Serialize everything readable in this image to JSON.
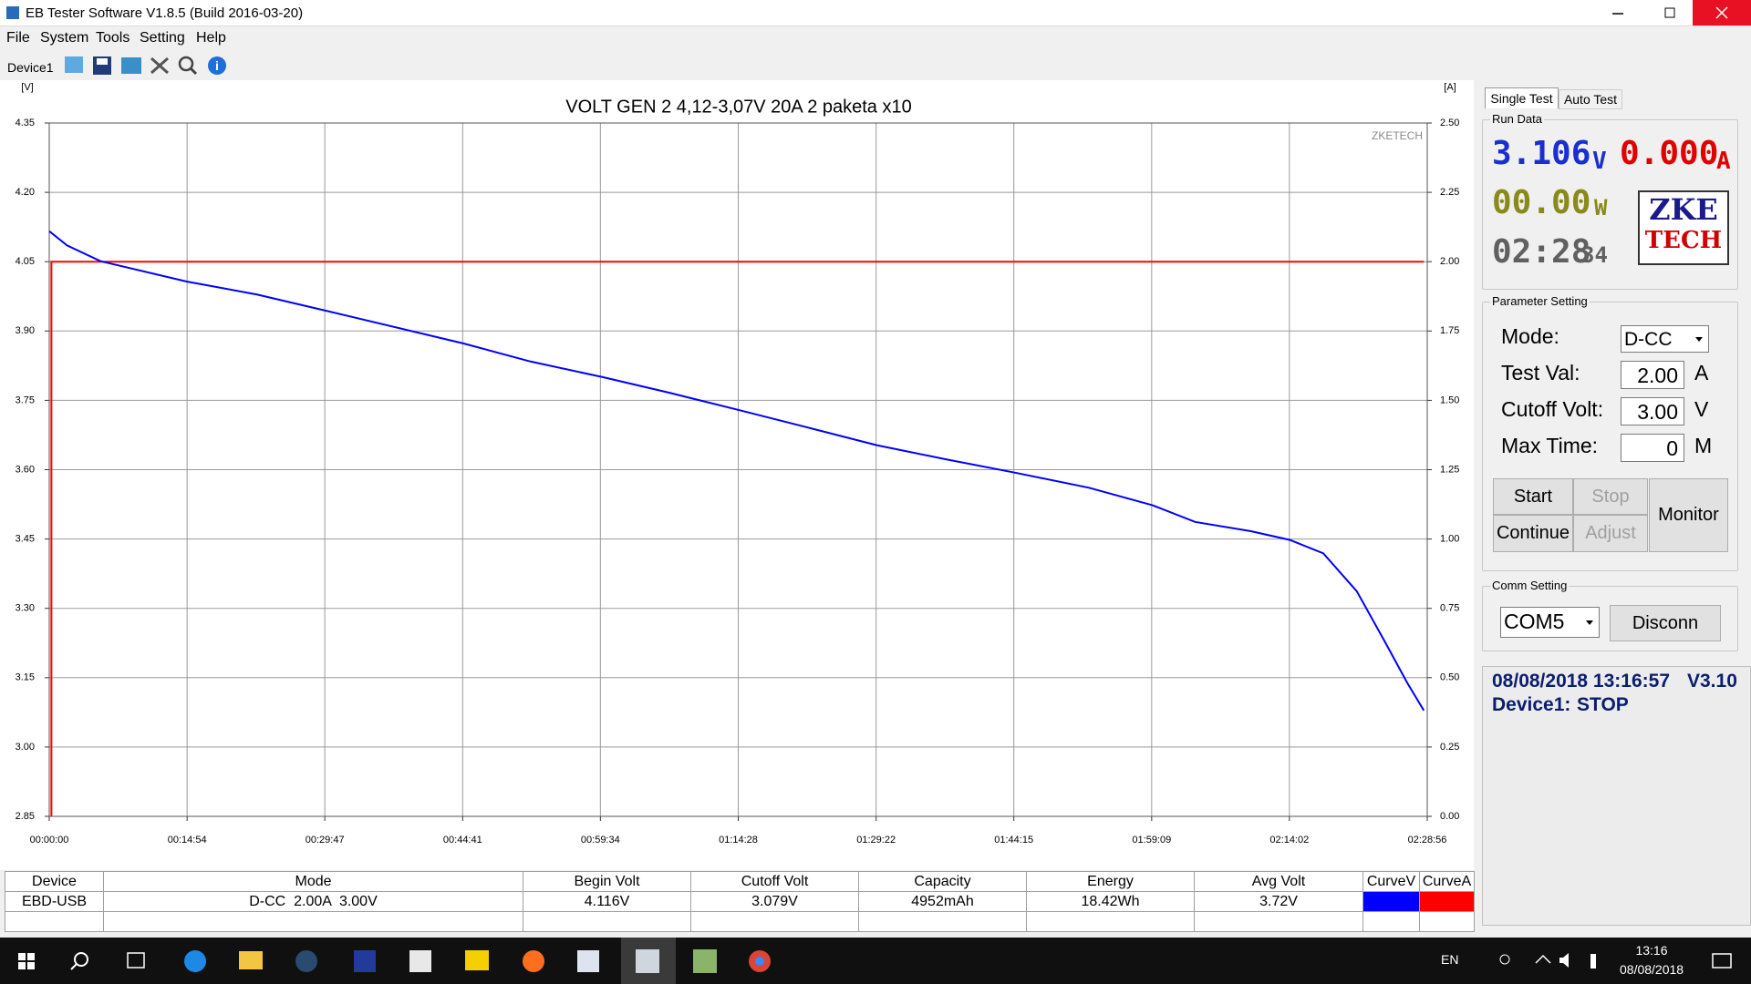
{
  "window": {
    "title": "EB Tester Software V1.8.5 (Build 2016-03-20)"
  },
  "menu": [
    "File",
    "System",
    "Tools",
    "Setting",
    "Help"
  ],
  "device_tab": "Device1",
  "chart_data": {
    "type": "line",
    "title": "VOLT GEN 2 4,12-3,07V 20A 2 paketa x10",
    "y_label": "[V]",
    "y2_label": "[A]",
    "watermark": "ZKETECH",
    "xlim": [
      0,
      8936
    ],
    "xticks": [
      {
        "value": 0,
        "label": "00:00:00"
      },
      {
        "value": 894,
        "label": "00:14:54"
      },
      {
        "value": 1787,
        "label": "00:29:47"
      },
      {
        "value": 2681,
        "label": "00:44:41"
      },
      {
        "value": 3574,
        "label": "00:59:34"
      },
      {
        "value": 4468,
        "label": "01:14:28"
      },
      {
        "value": 5362,
        "label": "01:29:22"
      },
      {
        "value": 6255,
        "label": "01:44:15"
      },
      {
        "value": 7149,
        "label": "01:59:09"
      },
      {
        "value": 8042,
        "label": "02:14:02"
      },
      {
        "value": 8936,
        "label": "02:28:56"
      }
    ],
    "ylim": [
      2.85,
      4.35
    ],
    "yticks": [
      2.85,
      {
        "value": 3,
        "label": "3.00"
      },
      3.15,
      {
        "value": 3.3,
        "label": "3.30"
      },
      3.45,
      {
        "value": 3.6,
        "label": "3.60"
      },
      3.75,
      {
        "value": 3.9,
        "label": "3.90"
      },
      4.05,
      {
        "value": 4.2,
        "label": "4.20"
      },
      4.35
    ],
    "y2lim": [
      0,
      2.5
    ],
    "y2ticks": [
      {
        "value": 0,
        "label": "0.00"
      },
      0.25,
      {
        "value": 0.5,
        "label": "0.50"
      },
      0.75,
      {
        "value": 1,
        "label": "1.00"
      },
      1.25,
      {
        "value": 1.5,
        "label": "1.50"
      },
      1.75,
      {
        "value": 2,
        "label": "2.00"
      },
      2.25,
      {
        "value": 2.5,
        "label": "2.50"
      }
    ],
    "grid": true,
    "series": [
      {
        "color": "#0000ff",
        "x": [
          0,
          116,
          333,
          891,
          1347,
          1781,
          2687,
          3121,
          3592,
          4026,
          4461,
          4910,
          5366,
          5822,
          6271,
          6742,
          7155,
          7430,
          7792,
          8045,
          8262,
          8479,
          8661,
          8806,
          8914
        ],
        "values": [
          4.116,
          4.085,
          4.051,
          4.007,
          3.979,
          3.945,
          3.873,
          3.834,
          3.8,
          3.766,
          3.73,
          3.692,
          3.653,
          3.622,
          3.593,
          3.561,
          3.523,
          3.487,
          3.467,
          3.448,
          3.419,
          3.337,
          3.228,
          3.139,
          3.079
        ]
      },
      {
        "color": "#ff0000",
        "axis": "y2",
        "x": [
          14,
          14,
          8914
        ],
        "values": [
          0,
          2,
          2
        ]
      }
    ]
  },
  "right_panel": {
    "tabs": [
      "Single Test",
      "Auto Test"
    ],
    "run_data": {
      "title": "Run Data",
      "voltage": "3.106",
      "voltage_unit": "V",
      "current": "0.000",
      "current_unit": "A",
      "power": "00.00",
      "power_unit": "W",
      "time": "02:28",
      "time_seconds": "34",
      "logo": [
        "ZKE",
        "TECH"
      ]
    },
    "parameter_setting": {
      "title": "Parameter Setting",
      "rows": [
        {
          "label": "Mode:",
          "value": "D-CC"
        },
        {
          "label": "Test Val:",
          "value": "2.00",
          "unit": "A"
        },
        {
          "label": "Cutoff Volt:",
          "value": "3.00",
          "unit": "V"
        },
        {
          "label": "Max Time:",
          "value": "0",
          "unit": "M"
        }
      ],
      "buttons": {
        "start": "Start",
        "stop": "Stop",
        "continue": "Continue",
        "adjust": "Adjust",
        "monitor": "Monitor"
      }
    },
    "comm_setting": {
      "title": "Comm Setting",
      "port": "COM5",
      "button": "Disconn"
    },
    "status": {
      "datetime": "08/08/2018 13:16:57",
      "version": "V3.10",
      "device": "Device1:",
      "state": "STOP"
    }
  },
  "table": {
    "headers": [
      "Device",
      "Mode",
      "Begin Volt",
      "Cutoff Volt",
      "Capacity",
      "Energy",
      "Avg Volt",
      "CurveV",
      "CurveA"
    ],
    "rows": [
      [
        "EBD-USB",
        "D-CC  2.00A  3.00V",
        "4.116V",
        "3.079V",
        "4952mAh",
        "18.42Wh",
        "3.72V"
      ]
    ]
  },
  "taskbar": {
    "language": "EN",
    "time": "13:16",
    "date": "08/08/2018"
  }
}
